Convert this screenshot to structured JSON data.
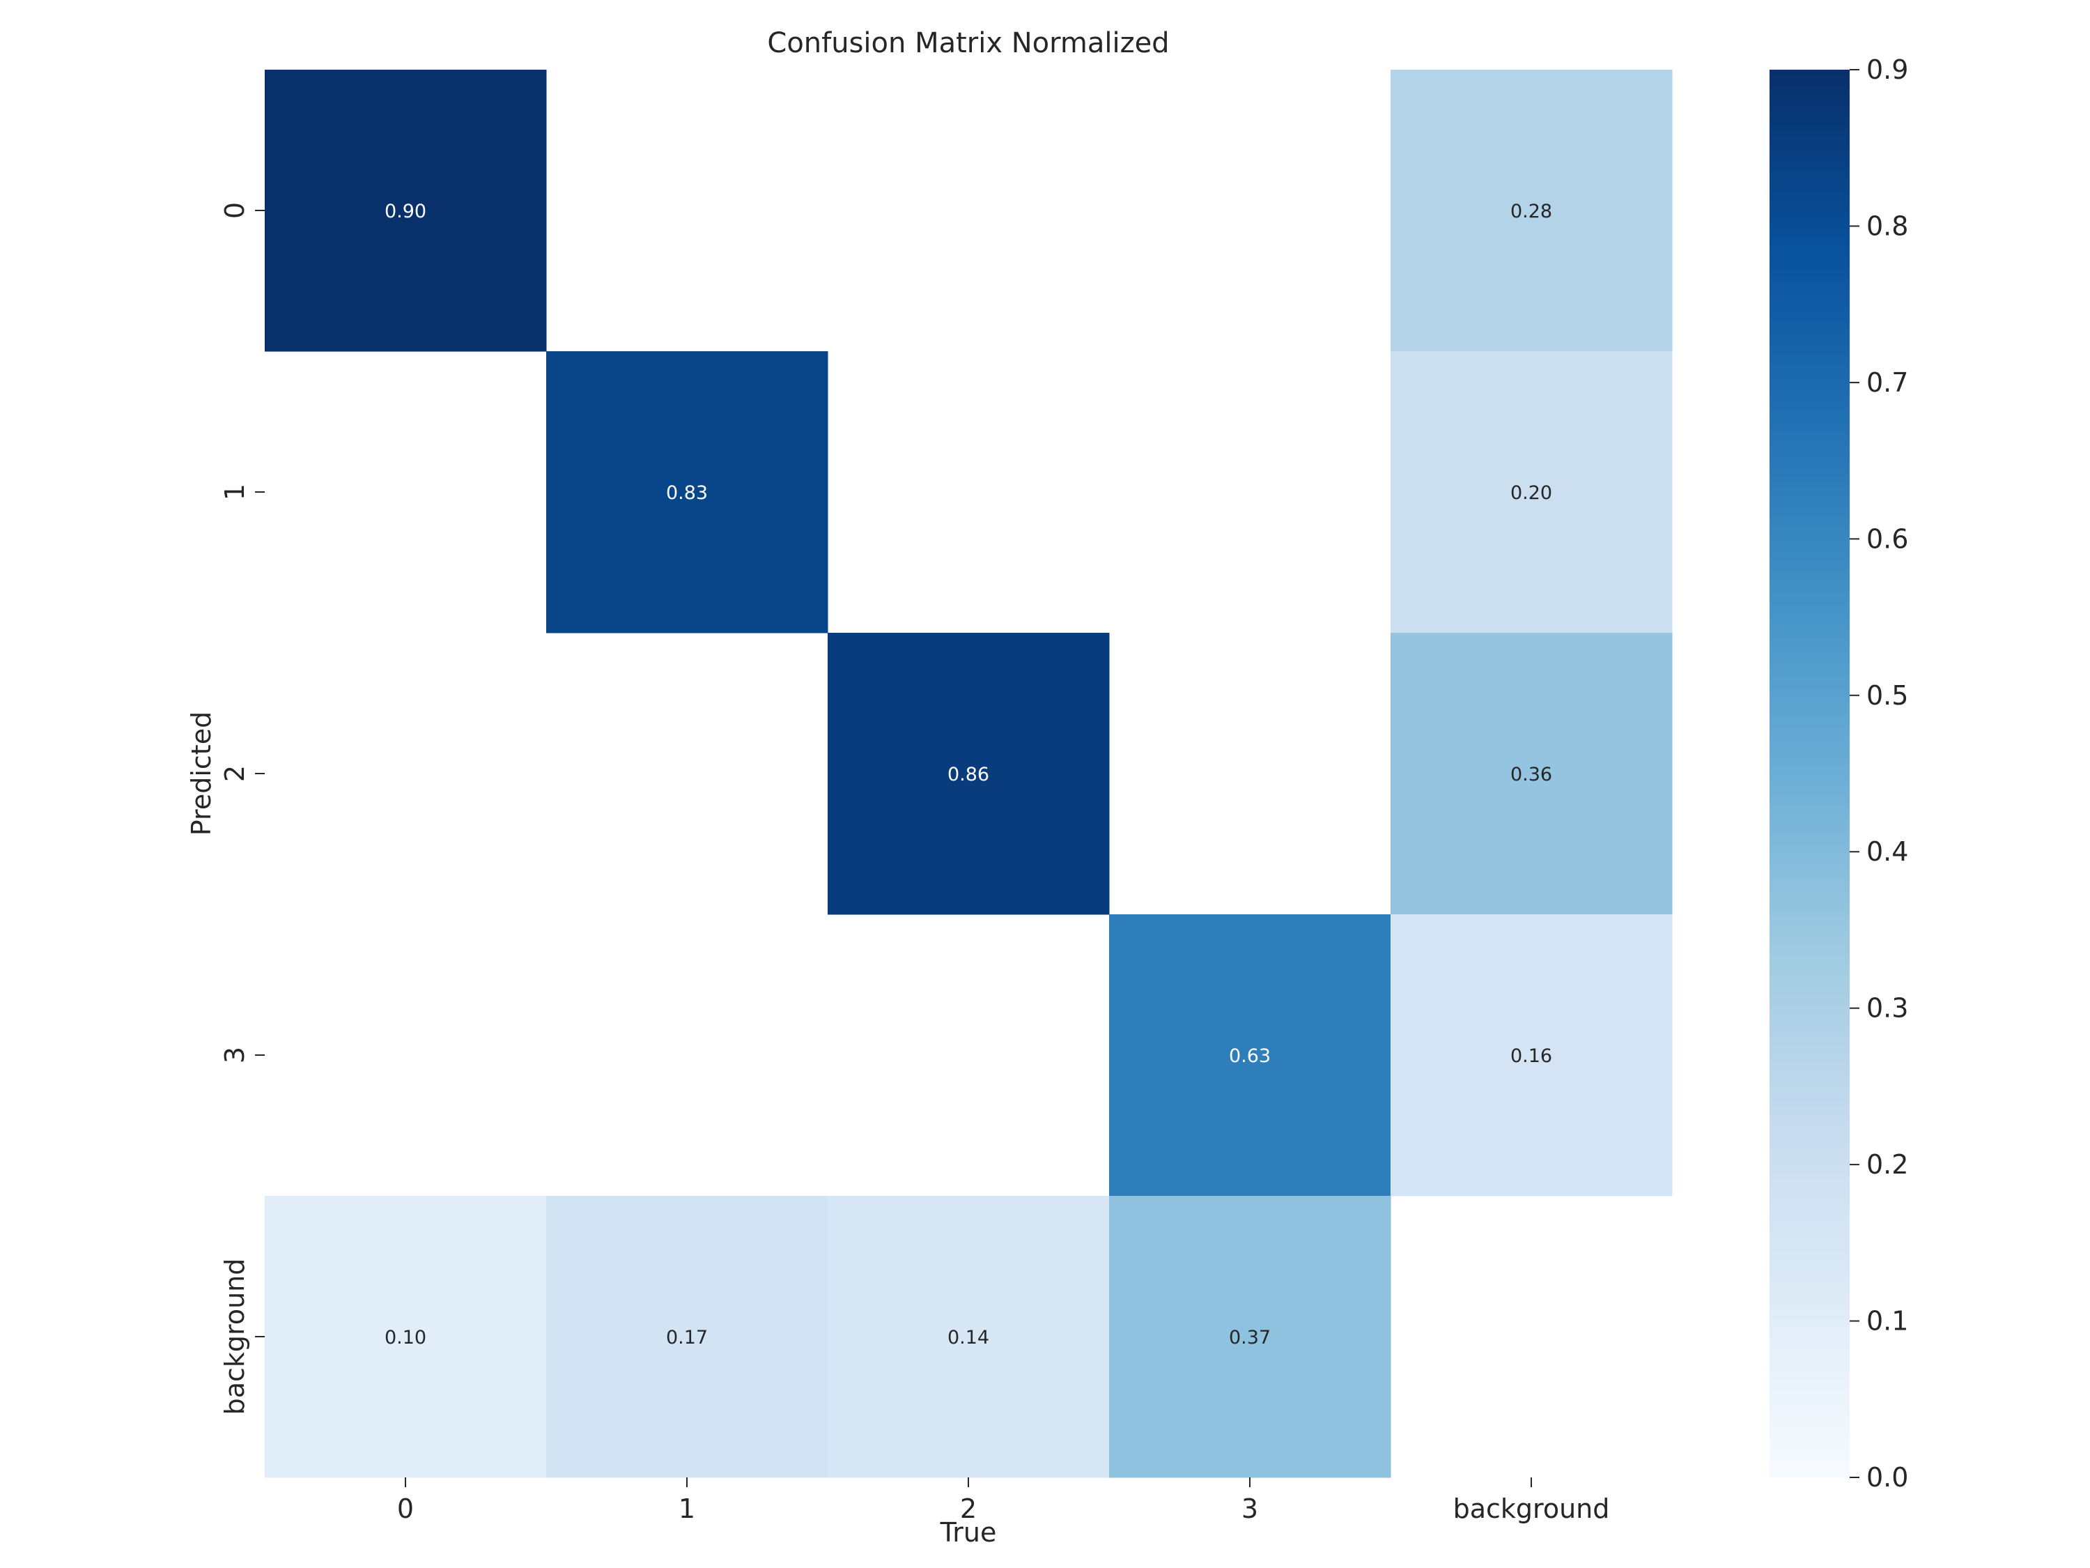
{
  "chart_data": {
    "type": "heatmap",
    "title": "Confusion Matrix Normalized",
    "xlabel": "True",
    "ylabel": "Predicted",
    "x_categories": [
      "0",
      "1",
      "2",
      "3",
      "background"
    ],
    "y_categories": [
      "0",
      "1",
      "2",
      "3",
      "background"
    ],
    "values": [
      [
        0.9,
        null,
        null,
        null,
        0.28
      ],
      [
        null,
        0.83,
        null,
        null,
        0.2
      ],
      [
        null,
        null,
        0.86,
        null,
        0.36
      ],
      [
        null,
        null,
        null,
        0.63,
        0.16
      ],
      [
        0.1,
        0.17,
        0.14,
        0.37,
        null
      ]
    ],
    "colormap": "Blues",
    "color_range": [
      0.0,
      0.9
    ],
    "colorbar_ticks": [
      "0.0",
      "0.1",
      "0.2",
      "0.3",
      "0.4",
      "0.5",
      "0.6",
      "0.7",
      "0.8",
      "0.9"
    ],
    "colorbar_tick_values": [
      0.0,
      0.1,
      0.2,
      0.3,
      0.4,
      0.5,
      0.6,
      0.7,
      0.8,
      0.9
    ],
    "grid": false,
    "colorbar_placement": "right"
  }
}
